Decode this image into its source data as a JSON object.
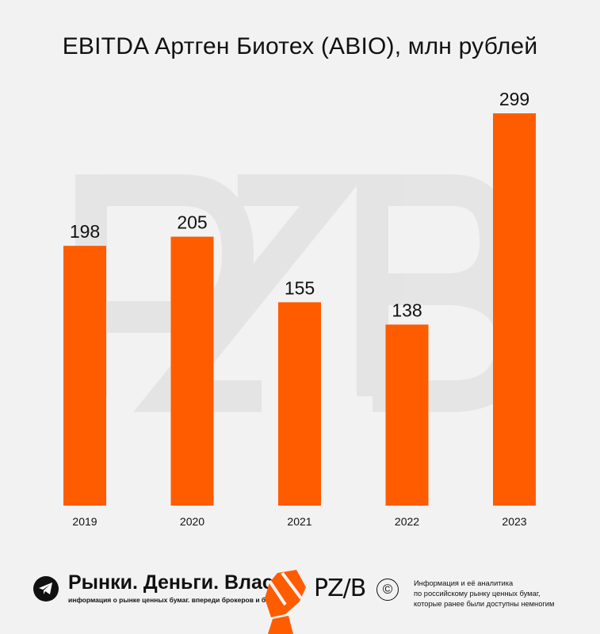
{
  "chart_data": {
    "type": "bar",
    "title": "EBITDA Артген Биотех (ABIO), млн рублей",
    "categories": [
      "2019",
      "2020",
      "2021",
      "2022",
      "2023"
    ],
    "values": [
      198,
      205,
      155,
      138,
      299
    ],
    "xlabel": "",
    "ylabel": "",
    "ylim": [
      0,
      299
    ],
    "grid": false,
    "bar_color": "#ff5c00"
  },
  "watermark": "PZB",
  "footer": {
    "brand_name": "Рынки. Деньги. Власть.",
    "brand_tagline": "информация о рынке ценных бумаг. впереди брокеров и банков.",
    "logo": "PZ/B",
    "copyright_symbol": "©",
    "info_lines": [
      "Информация и её аналитика",
      "по российскому рынку ценных бумаг,",
      "которые ранее были доступны немногим"
    ],
    "telegram_icon": "telegram-icon",
    "accent_color": "#ff5c00"
  }
}
